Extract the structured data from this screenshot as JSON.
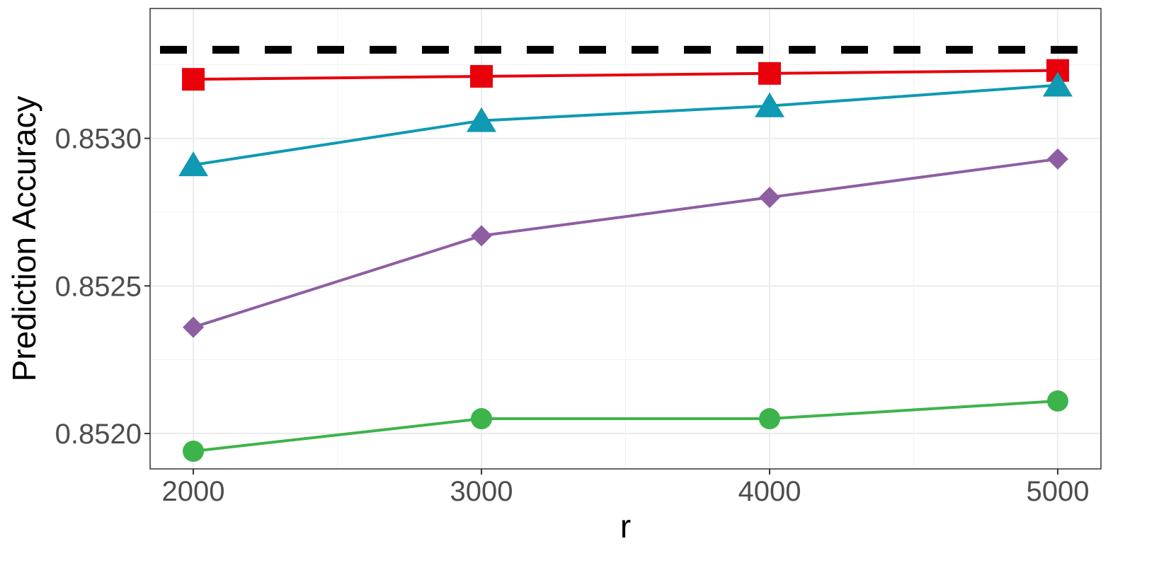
{
  "chart_data": {
    "type": "line",
    "title": "",
    "xlabel": "r",
    "ylabel": "Prediction Accuracy",
    "x": [
      2000,
      3000,
      4000,
      5000
    ],
    "x_ticks": [
      "2000",
      "3000",
      "4000",
      "5000"
    ],
    "y_ticks": [
      "0.8520",
      "0.8525",
      "0.8530"
    ],
    "y_tick_values": [
      0.852,
      0.8525,
      0.853
    ],
    "xlim": [
      1850,
      5150
    ],
    "ylim": [
      0.85188,
      0.85344
    ],
    "grid": true,
    "legend": "none",
    "reference_line": {
      "y": 0.8533,
      "color": "#000000",
      "style": "dashed"
    },
    "series": [
      {
        "color": "#e8000b",
        "marker": "square",
        "values": [
          0.8532,
          0.85321,
          0.85322,
          0.85323
        ]
      },
      {
        "color": "#0f99b2",
        "marker": "triangle",
        "values": [
          0.85291,
          0.85306,
          0.85311,
          0.85318
        ]
      },
      {
        "color": "#8e5ea2",
        "marker": "diamond",
        "values": [
          0.85236,
          0.85267,
          0.8528,
          0.85293
        ]
      },
      {
        "color": "#3cb44b",
        "marker": "circle",
        "values": [
          0.85194,
          0.85205,
          0.85205,
          0.85211
        ]
      }
    ]
  }
}
